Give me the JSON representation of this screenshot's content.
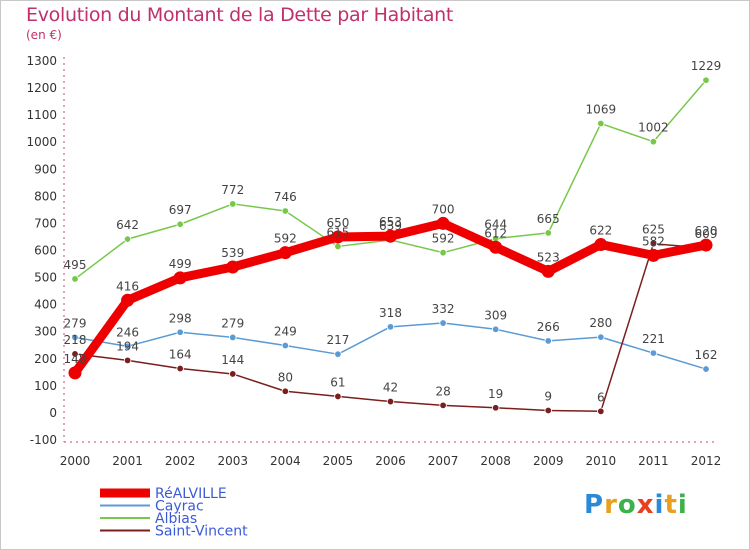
{
  "chart_data": {
    "type": "line",
    "title": "Evolution du Montant de la Dette par Habitant",
    "ylabel": "(en €)",
    "xlabel": "",
    "categories": [
      "2000",
      "2001",
      "2002",
      "2003",
      "2004",
      "2005",
      "2006",
      "2007",
      "2008",
      "2009",
      "2010",
      "2011",
      "2012"
    ],
    "ylim": [
      -100,
      1300
    ],
    "yticks": [
      -100,
      0,
      100,
      200,
      300,
      400,
      500,
      600,
      700,
      800,
      900,
      1000,
      1100,
      1200,
      1300
    ],
    "grid": false,
    "legend_position": "bottom-left",
    "series": [
      {
        "name": "RéALVILLE",
        "color": "#ee0000",
        "values": [
          148,
          416,
          499,
          539,
          592,
          650,
          653,
          700,
          612,
          523,
          622,
          582,
          620
        ]
      },
      {
        "name": "Cayrac",
        "color": "#5b9bd5",
        "values": [
          279,
          246,
          298,
          279,
          249,
          217,
          318,
          332,
          309,
          266,
          280,
          221,
          162
        ]
      },
      {
        "name": "Albias",
        "color": "#77c84a",
        "values": [
          495,
          642,
          697,
          772,
          746,
          615,
          639,
          592,
          644,
          665,
          1069,
          1002,
          1229
        ]
      },
      {
        "name": "Saint-Vincent",
        "color": "#7a1e1e",
        "values": [
          218,
          194,
          164,
          144,
          80,
          61,
          42,
          28,
          19,
          9,
          6,
          625,
          609
        ]
      }
    ],
    "data_labels": [
      [
        "148",
        "416",
        "499",
        "539",
        "592",
        "650",
        "653",
        "700",
        "612",
        "523",
        "622",
        "582",
        "620"
      ],
      [
        "279",
        "246",
        "298",
        "279",
        "249",
        "217",
        "318",
        "332",
        "309",
        "266",
        "280",
        "221",
        "162"
      ],
      [
        "495",
        "642",
        "697",
        "772",
        "746",
        "615",
        "639",
        "592",
        "644",
        "665",
        "1069",
        "1002",
        "1229"
      ],
      [
        "218",
        "194",
        "164",
        "144",
        "80",
        "61",
        "42",
        "28",
        "19",
        "9",
        "6",
        "625",
        "609"
      ]
    ],
    "watermark": "Proxiti"
  }
}
